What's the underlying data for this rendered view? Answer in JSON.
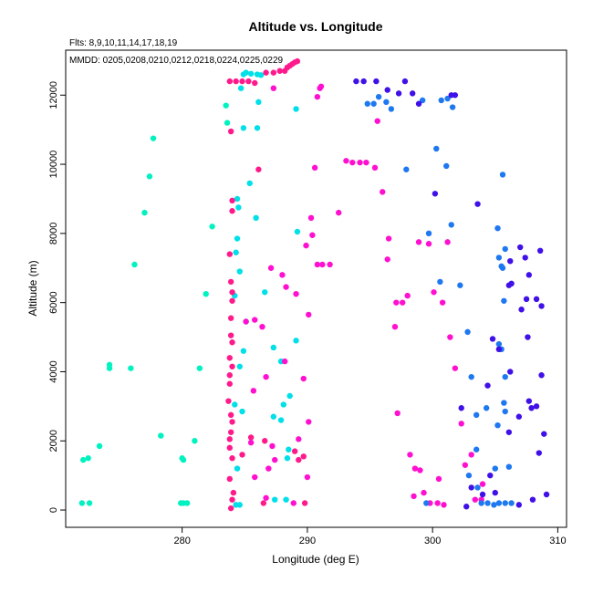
{
  "chart_data": {
    "type": "scatter",
    "title": "Altitude vs. Longitude",
    "annotations": [
      "Flts: 8,9,10,11,14,17,18,19",
      "MMDD: 0205,0208,0210,0212,0218,0224,0225,0229"
    ],
    "xlabel": "Longitude (deg E)",
    "ylabel": "Altitude (m)",
    "xlim": [
      270.7,
      310.7
    ],
    "ylim": [
      -500,
      13300
    ],
    "xticks": [
      280,
      290,
      300,
      310
    ],
    "yticks": [
      0,
      2000,
      4000,
      6000,
      8000,
      10000,
      12000
    ],
    "grid": false,
    "legend": "none",
    "series": [
      {
        "color": "#00f2c0",
        "points": [
          [
            272.0,
            200
          ],
          [
            272.6,
            200
          ],
          [
            272.1,
            1450
          ],
          [
            272.5,
            1500
          ],
          [
            273.4,
            1850
          ],
          [
            274.2,
            4100
          ],
          [
            274.2,
            4200
          ],
          [
            275.9,
            4100
          ],
          [
            276.2,
            7100
          ],
          [
            277.0,
            8600
          ],
          [
            277.4,
            9650
          ],
          [
            277.7,
            10750
          ],
          [
            278.3,
            2150
          ],
          [
            279.9,
            200
          ],
          [
            280.1,
            200
          ],
          [
            280.4,
            200
          ],
          [
            280.1,
            1450
          ],
          [
            280.0,
            1500
          ],
          [
            281.0,
            2000
          ],
          [
            281.4,
            4100
          ],
          [
            281.9,
            6250
          ],
          [
            282.4,
            8200
          ],
          [
            283.5,
            11700
          ],
          [
            283.6,
            11200
          ]
        ]
      },
      {
        "color": "#00e0e8",
        "points": [
          [
            284.3,
            150
          ],
          [
            284.6,
            150
          ],
          [
            284.4,
            1200
          ],
          [
            284.8,
            2850
          ],
          [
            284.2,
            3050
          ],
          [
            284.6,
            4150
          ],
          [
            284.9,
            4600
          ],
          [
            285.1,
            5450
          ],
          [
            284.2,
            6200
          ],
          [
            284.6,
            6900
          ],
          [
            284.3,
            7450
          ],
          [
            284.4,
            7850
          ],
          [
            284.5,
            8750
          ],
          [
            284.4,
            9000
          ],
          [
            285.4,
            9450
          ],
          [
            284.9,
            11050
          ],
          [
            284.9,
            12600
          ],
          [
            285.1,
            12650
          ],
          [
            285.5,
            12620
          ],
          [
            286.0,
            12600
          ],
          [
            286.3,
            12580
          ],
          [
            286.0,
            11050
          ],
          [
            285.9,
            8450
          ],
          [
            286.6,
            6300
          ],
          [
            287.3,
            4700
          ],
          [
            287.9,
            4300
          ],
          [
            287.3,
            2700
          ],
          [
            287.9,
            2600
          ],
          [
            288.1,
            3050
          ],
          [
            288.6,
            3300
          ],
          [
            287.4,
            300
          ],
          [
            288.3,
            300
          ],
          [
            288.4,
            1500
          ],
          [
            288.5,
            1750
          ],
          [
            289.1,
            4900
          ],
          [
            289.2,
            8050
          ],
          [
            289.1,
            11600
          ],
          [
            284.7,
            12200
          ],
          [
            286.1,
            11800
          ]
        ]
      },
      {
        "color": "#ff1a8c",
        "points": [
          [
            283.9,
            50
          ],
          [
            284.0,
            300
          ],
          [
            284.1,
            500
          ],
          [
            283.8,
            900
          ],
          [
            284.0,
            1500
          ],
          [
            283.8,
            1800
          ],
          [
            283.8,
            2050
          ],
          [
            283.9,
            2250
          ],
          [
            284.0,
            2550
          ],
          [
            283.9,
            2750
          ],
          [
            283.7,
            3150
          ],
          [
            283.8,
            3650
          ],
          [
            283.8,
            3900
          ],
          [
            284.0,
            4150
          ],
          [
            283.8,
            4400
          ],
          [
            284.0,
            4850
          ],
          [
            283.9,
            5050
          ],
          [
            283.9,
            5550
          ],
          [
            284.0,
            6050
          ],
          [
            284.0,
            6300
          ],
          [
            283.9,
            6600
          ],
          [
            283.8,
            7400
          ],
          [
            284.0,
            8650
          ],
          [
            284.0,
            8950
          ],
          [
            283.9,
            10950
          ],
          [
            283.8,
            12400
          ],
          [
            284.3,
            12400
          ],
          [
            284.8,
            12400
          ],
          [
            285.3,
            12400
          ],
          [
            285.8,
            12350
          ],
          [
            286.1,
            9850
          ],
          [
            286.7,
            12650
          ],
          [
            287.3,
            12650
          ],
          [
            287.8,
            12700
          ],
          [
            288.2,
            12700
          ],
          [
            288.4,
            12800
          ],
          [
            288.6,
            12850
          ],
          [
            288.8,
            12900
          ],
          [
            289.0,
            12950
          ],
          [
            289.2,
            12980
          ],
          [
            286.5,
            200
          ],
          [
            289.8,
            200
          ],
          [
            289.7,
            1550
          ],
          [
            289.0,
            1700
          ],
          [
            289.3,
            1450
          ],
          [
            284.8,
            1600
          ],
          [
            286.6,
            2000
          ],
          [
            285.5,
            2100
          ]
        ]
      },
      {
        "color": "#ff10d0",
        "points": [
          [
            287.1,
            7000
          ],
          [
            288.0,
            6800
          ],
          [
            288.3,
            6450
          ],
          [
            289.1,
            6250
          ],
          [
            285.8,
            5500
          ],
          [
            286.4,
            5300
          ],
          [
            285.7,
            3450
          ],
          [
            286.7,
            3850
          ],
          [
            288.2,
            4300
          ],
          [
            289.7,
            3800
          ],
          [
            290.1,
            5650
          ],
          [
            289.9,
            7650
          ],
          [
            290.4,
            7950
          ],
          [
            290.3,
            8450
          ],
          [
            290.6,
            9900
          ],
          [
            290.1,
            2550
          ],
          [
            289.3,
            2050
          ],
          [
            290.0,
            950
          ],
          [
            287.2,
            1850
          ],
          [
            287.4,
            1450
          ],
          [
            286.9,
            1200
          ],
          [
            285.8,
            950
          ],
          [
            286.7,
            350
          ],
          [
            288.9,
            200
          ],
          [
            290.8,
            7100
          ],
          [
            291.2,
            7100
          ],
          [
            291.8,
            7100
          ],
          [
            292.5,
            8600
          ],
          [
            293.1,
            10100
          ],
          [
            293.6,
            10050
          ],
          [
            294.2,
            10050
          ],
          [
            294.7,
            10050
          ],
          [
            295.4,
            9900
          ],
          [
            295.6,
            11250
          ],
          [
            296.0,
            9200
          ],
          [
            296.4,
            7250
          ],
          [
            296.5,
            7850
          ],
          [
            297.0,
            5300
          ],
          [
            297.1,
            6000
          ],
          [
            297.6,
            6000
          ],
          [
            298.0,
            6200
          ],
          [
            297.2,
            2800
          ],
          [
            298.2,
            1600
          ],
          [
            298.6,
            1200
          ],
          [
            299.0,
            1150
          ],
          [
            298.5,
            400
          ],
          [
            299.3,
            500
          ],
          [
            299.8,
            200
          ],
          [
            300.4,
            200
          ],
          [
            300.9,
            150
          ],
          [
            300.5,
            900
          ],
          [
            300.8,
            6000
          ],
          [
            301.2,
            7750
          ],
          [
            300.1,
            6300
          ],
          [
            301.4,
            5000
          ],
          [
            301.8,
            4100
          ],
          [
            302.3,
            2500
          ],
          [
            302.6,
            1300
          ],
          [
            303.1,
            1600
          ],
          [
            303.4,
            300
          ],
          [
            303.9,
            300
          ],
          [
            304.0,
            750
          ],
          [
            298.9,
            7750
          ],
          [
            299.7,
            7700
          ],
          [
            290.8,
            11950
          ],
          [
            291.0,
            12200
          ],
          [
            291.1,
            12250
          ],
          [
            287.3,
            12200
          ],
          [
            285.5,
            1950
          ],
          [
            285.1,
            5450
          ]
        ]
      },
      {
        "color": "#1e78f0",
        "points": [
          [
            294.8,
            11750
          ],
          [
            295.3,
            11750
          ],
          [
            295.7,
            11950
          ],
          [
            296.3,
            11800
          ],
          [
            296.7,
            11600
          ],
          [
            297.9,
            9850
          ],
          [
            299.2,
            11850
          ],
          [
            300.3,
            10450
          ],
          [
            301.1,
            9950
          ],
          [
            301.6,
            11650
          ],
          [
            300.7,
            11850
          ],
          [
            301.2,
            11900
          ],
          [
            299.7,
            8000
          ],
          [
            300.6,
            6600
          ],
          [
            301.5,
            8250
          ],
          [
            302.2,
            6500
          ],
          [
            302.8,
            5150
          ],
          [
            303.1,
            3850
          ],
          [
            303.5,
            2750
          ],
          [
            303.5,
            1750
          ],
          [
            302.9,
            1000
          ],
          [
            303.6,
            650
          ],
          [
            303.9,
            200
          ],
          [
            304.4,
            200
          ],
          [
            304.9,
            150
          ],
          [
            305.3,
            200
          ],
          [
            305.8,
            200
          ],
          [
            306.3,
            200
          ],
          [
            305.6,
            9700
          ],
          [
            305.2,
            8150
          ],
          [
            305.3,
            7300
          ],
          [
            305.5,
            7050
          ],
          [
            305.8,
            7550
          ],
          [
            305.6,
            7000
          ],
          [
            305.7,
            6050
          ],
          [
            305.5,
            4650
          ],
          [
            305.3,
            4800
          ],
          [
            305.7,
            3100
          ],
          [
            305.2,
            2450
          ],
          [
            305.8,
            2850
          ],
          [
            306.1,
            1250
          ],
          [
            305.0,
            1200
          ],
          [
            304.3,
            2950
          ],
          [
            305.8,
            3850
          ],
          [
            299.5,
            200
          ]
        ]
      },
      {
        "color": "#4010e8",
        "points": [
          [
            293.9,
            12400
          ],
          [
            294.5,
            12400
          ],
          [
            295.5,
            12400
          ],
          [
            296.4,
            12150
          ],
          [
            297.3,
            12050
          ],
          [
            297.8,
            12400
          ],
          [
            298.4,
            12050
          ],
          [
            298.9,
            11750
          ],
          [
            301.5,
            12000
          ],
          [
            301.8,
            12000
          ],
          [
            300.2,
            9150
          ],
          [
            303.6,
            8850
          ],
          [
            304.8,
            4950
          ],
          [
            305.3,
            4650
          ],
          [
            306.1,
            6500
          ],
          [
            306.3,
            6550
          ],
          [
            306.2,
            7200
          ],
          [
            307.0,
            7600
          ],
          [
            307.4,
            7300
          ],
          [
            307.7,
            6800
          ],
          [
            307.5,
            6100
          ],
          [
            308.6,
            7500
          ],
          [
            308.3,
            6100
          ],
          [
            308.7,
            5900
          ],
          [
            307.1,
            5800
          ],
          [
            307.6,
            5000
          ],
          [
            306.2,
            4000
          ],
          [
            307.7,
            3150
          ],
          [
            308.3,
            3000
          ],
          [
            308.7,
            3900
          ],
          [
            308.9,
            2200
          ],
          [
            308.5,
            1650
          ],
          [
            307.9,
            2950
          ],
          [
            306.9,
            2700
          ],
          [
            306.1,
            2250
          ],
          [
            304.6,
            1000
          ],
          [
            304.0,
            450
          ],
          [
            303.1,
            650
          ],
          [
            302.7,
            100
          ],
          [
            306.9,
            150
          ],
          [
            308.0,
            300
          ],
          [
            309.1,
            450
          ],
          [
            302.3,
            2950
          ],
          [
            304.4,
            3600
          ],
          [
            305.0,
            500
          ]
        ]
      }
    ]
  }
}
